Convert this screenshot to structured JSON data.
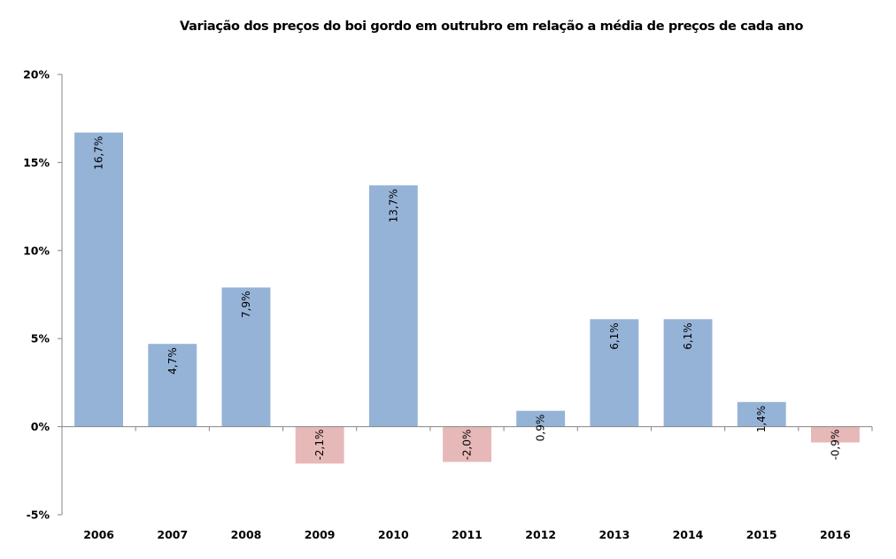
{
  "chart_data": {
    "type": "bar",
    "title": "Variação dos preços do boi gordo em outrubro em relação a média de preços de cada ano",
    "xlabel": "",
    "ylabel": "",
    "categories": [
      "2006",
      "2007",
      "2008",
      "2009",
      "2010",
      "2011",
      "2012",
      "2013",
      "2014",
      "2015",
      "2016"
    ],
    "values": [
      16.7,
      4.7,
      7.9,
      -2.1,
      13.7,
      -2.0,
      0.9,
      6.1,
      6.1,
      1.4,
      -0.9
    ],
    "data_labels": [
      "16,7%",
      "4,7%",
      "7,9%",
      "-2,1%",
      "13,7%",
      "-2,0%",
      "0,9%",
      "6,1%",
      "6,1%",
      "1,4%",
      "-0,9%"
    ],
    "ylim": [
      -5,
      20
    ],
    "yticks": [
      20,
      15,
      10,
      5,
      0,
      -5
    ],
    "ytick_labels": [
      "20%",
      "15%",
      "10%",
      "5%",
      "0%",
      "-5%"
    ],
    "grid": false,
    "legend": "none",
    "colors": {
      "positive": "#95B3D7",
      "negative": "#E6B9B8",
      "axis": "#868686"
    }
  }
}
